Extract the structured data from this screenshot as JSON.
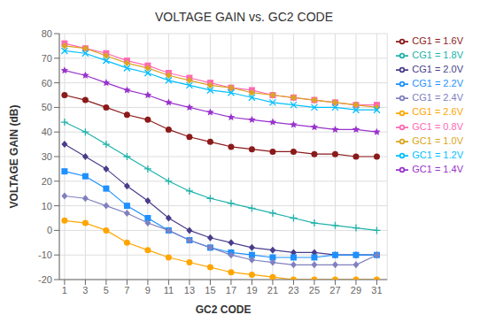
{
  "chart_data": {
    "type": "line",
    "title": "VOLTAGE GAIN vs. GC2 CODE",
    "x_label": "GC2 CODE",
    "y_label": "VOLTAGE GAIN (dB)",
    "x": [
      1,
      3,
      5,
      7,
      9,
      11,
      13,
      15,
      17,
      19,
      21,
      23,
      25,
      27,
      29,
      31
    ],
    "xlim": [
      0.5,
      32
    ],
    "ylim": [
      -20,
      80
    ],
    "xticks": [
      1,
      3,
      5,
      7,
      9,
      11,
      13,
      15,
      17,
      19,
      21,
      23,
      25,
      27,
      29,
      31
    ],
    "yticks": [
      -20,
      -10,
      0,
      10,
      20,
      30,
      40,
      50,
      60,
      70,
      80
    ],
    "grid": true,
    "legend": "right",
    "series": [
      {
        "name": "GC1 = 0.8V",
        "color": "#FF69B4",
        "marker": "square",
        "values": [
          76,
          74,
          72,
          69,
          67,
          64,
          62,
          60,
          58,
          57,
          55,
          54,
          53,
          52,
          51,
          51
        ]
      },
      {
        "name": "GC1 = 1.0V",
        "color": "#DAA520",
        "marker": "diamond",
        "values": [
          75,
          74,
          71,
          68,
          66,
          63,
          61,
          59,
          58,
          56,
          55,
          54,
          53,
          52,
          51,
          50
        ]
      },
      {
        "name": "GC1 = 1.2V",
        "color": "#00BFFF",
        "marker": "x",
        "values": [
          73,
          72,
          69,
          66,
          64,
          61,
          59,
          57,
          56,
          54,
          52,
          51,
          50,
          50,
          49,
          49
        ]
      },
      {
        "name": "GC1 = 1.4V",
        "color": "#9932CC",
        "marker": "star",
        "values": [
          65,
          63,
          60,
          57,
          55,
          52,
          50,
          48,
          46,
          45,
          44,
          43,
          42,
          41,
          41,
          40
        ]
      },
      {
        "name": "CG1 = 1.6V",
        "color": "#8B1A1A",
        "marker": "circle",
        "values": [
          55,
          53,
          50,
          47,
          45,
          41,
          38,
          36,
          34,
          33,
          32,
          32,
          31,
          31,
          30,
          30
        ]
      },
      {
        "name": "CG1 = 1.8V",
        "color": "#20B2AA",
        "marker": "plus",
        "values": [
          44,
          40,
          35,
          30,
          25,
          20,
          16,
          13,
          11,
          9,
          7,
          5,
          3,
          2,
          1,
          0
        ]
      },
      {
        "name": "CG1 = 2.0V",
        "color": "#483D8B",
        "marker": "diamond",
        "values": [
          35,
          30,
          25,
          18,
          12,
          5,
          0,
          -3,
          -5,
          -7,
          -8,
          -9,
          -9,
          -10,
          -10,
          -10
        ]
      },
      {
        "name": "CG1 = 2.2V",
        "color": "#1E90FF",
        "marker": "square",
        "values": [
          24,
          22,
          17,
          10,
          5,
          0,
          -4,
          -7,
          -9,
          -10,
          -11,
          -11,
          -11,
          -10,
          -10,
          -10
        ]
      },
      {
        "name": "CG1 = 2.4V",
        "color": "#8080C0",
        "marker": "diamond",
        "values": [
          14,
          13,
          10,
          7,
          3,
          0,
          -4,
          -7,
          -10,
          -12,
          -13,
          -14,
          -14,
          -14,
          -14,
          -10
        ]
      },
      {
        "name": "CG1 = 2.6V",
        "color": "#FFA500",
        "marker": "circle",
        "values": [
          4,
          3,
          0,
          -5,
          -8,
          -11,
          -13,
          -15,
          -17,
          -18,
          -19,
          -20,
          -20,
          -20,
          -20,
          -20
        ]
      }
    ]
  }
}
